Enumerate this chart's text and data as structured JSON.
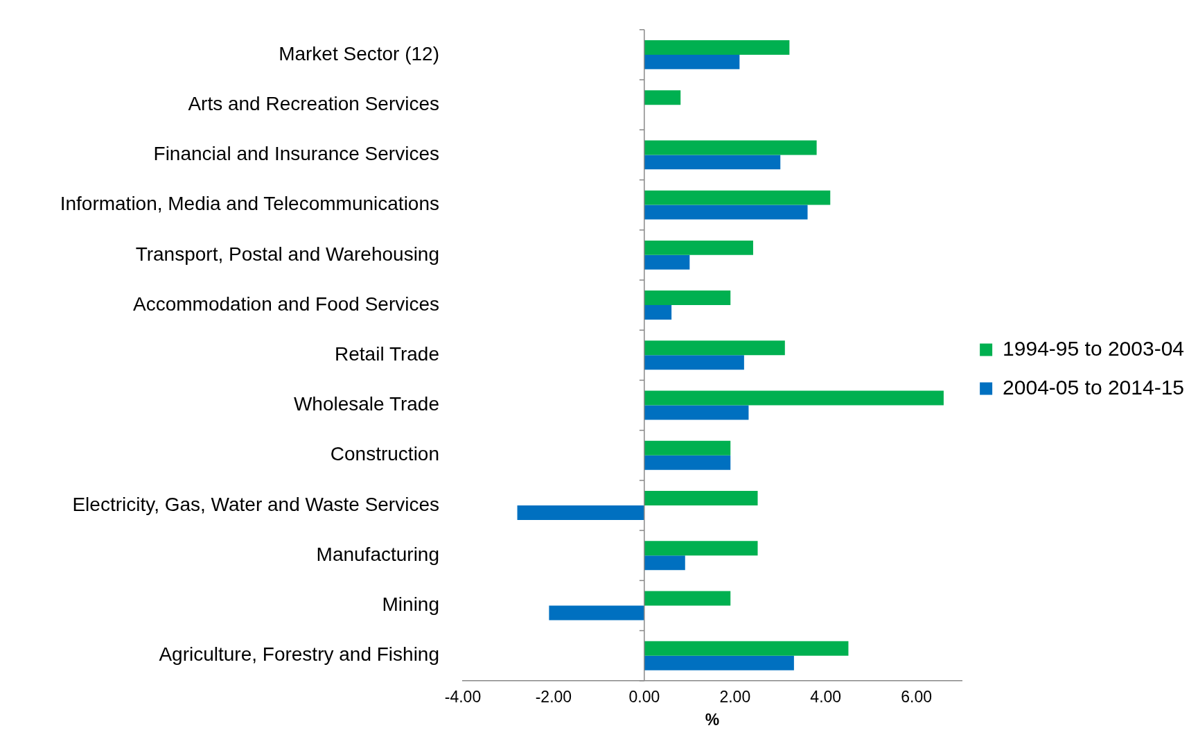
{
  "chart_data": {
    "type": "bar",
    "orientation": "horizontal",
    "xlabel": "%",
    "categories": [
      "Market Sector (12)",
      "Arts and Recreation Services",
      "Financial and Insurance Services",
      "Information, Media and Telecommunications",
      "Transport, Postal and Warehousing",
      "Accommodation and Food Services",
      "Retail Trade",
      "Wholesale Trade",
      "Construction",
      "Electricity, Gas, Water and Waste Services",
      "Manufacturing",
      "Mining",
      "Agriculture, Forestry and Fishing"
    ],
    "series": [
      {
        "name": "1994-95 to 2003-04",
        "color": "#00b050",
        "values": [
          3.2,
          0.8,
          3.8,
          4.1,
          2.4,
          1.9,
          3.1,
          6.6,
          1.9,
          2.5,
          2.5,
          1.9,
          4.5
        ]
      },
      {
        "name": "2004-05 to 2014-15",
        "color": "#0070c0",
        "values": [
          2.1,
          0,
          3.0,
          3.6,
          1.0,
          0.6,
          2.2,
          2.3,
          1.9,
          -2.8,
          0.9,
          -2.1,
          3.3
        ]
      }
    ],
    "xlim": [
      -4,
      7
    ],
    "xticks": [
      {
        "value": -4,
        "label": "-4.00"
      },
      {
        "value": -2,
        "label": "-2.00"
      },
      {
        "value": 0,
        "label": "0.00"
      },
      {
        "value": 2,
        "label": "2.00"
      },
      {
        "value": 4,
        "label": "4.00"
      },
      {
        "value": 6,
        "label": "6.00"
      }
    ],
    "ref_lines": [
      {
        "axis": "x",
        "value": 0,
        "color": "#888888"
      }
    ],
    "grid": false,
    "legend": "right"
  }
}
